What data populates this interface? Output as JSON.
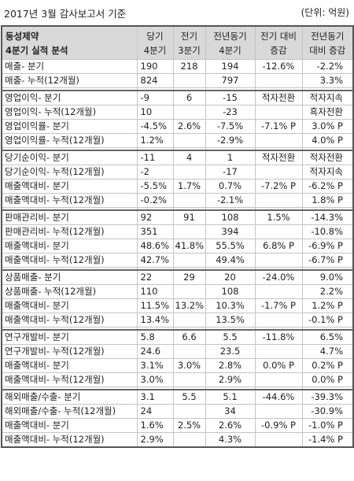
{
  "header": {
    "title": "2017년 3월 감사보고서 기준",
    "unit": "(단위: 억원)"
  },
  "columns": {
    "company": "동성제약",
    "subtitle": "4분기 실적 분석",
    "c1_line1": "당기",
    "c1_line2": "4분기",
    "c2_line1": "전기",
    "c2_line2": "3분기",
    "c3_line1": "전년동기",
    "c3_line2": "4분기",
    "c4_line1": "전기 대비",
    "c4_line2": "증감",
    "c5_line1": "전년동기",
    "c5_line2": "대비 증감"
  },
  "rows": [
    [
      "매출- 분기",
      "190",
      "218",
      "194",
      "-12.6%",
      "-2.2%"
    ],
    [
      "매출- 누적(12개월)",
      "824",
      "",
      "797",
      "",
      "3.3%"
    ],
    [
      "영업이익- 분기",
      "-9",
      "6",
      "-15",
      "적자전환",
      "적자지속"
    ],
    [
      "영업이익- 누적(12개월)",
      "10",
      "",
      "-23",
      "",
      "흑자전환"
    ],
    [
      "영업이익률- 분기",
      "-4.5%",
      "2.6%",
      "-7.5%",
      "-7.1% P",
      "3.0% P"
    ],
    [
      "영업이익률- 누적(12개월)",
      "1.2%",
      "",
      "-2.9%",
      "",
      "4.0% P"
    ],
    [
      "당기순이익- 분기",
      "-11",
      "4",
      "1",
      "적자전환",
      "적자전환"
    ],
    [
      "당기순이익- 누적(12개월)",
      "-2",
      "",
      "-17",
      "",
      "적자지속"
    ],
    [
      "매출액대비- 분기",
      "-5.5%",
      "1.7%",
      "0.7%",
      "-7.2% P",
      "-6.2% P"
    ],
    [
      "매출액대비- 누적(12개월)",
      "-0.2%",
      "",
      "-2.1%",
      "",
      "1.8% P"
    ],
    [
      "판매관리비- 분기",
      "92",
      "91",
      "108",
      "1.5%",
      "-14.3%"
    ],
    [
      "판매관리비- 누적(12개월)",
      "351",
      "",
      "394",
      "",
      "-10.8%"
    ],
    [
      "매출액대비- 분기",
      "48.6%",
      "41.8%",
      "55.5%",
      "6.8% P",
      "-6.9% P"
    ],
    [
      "매출액대비- 누적(12개월)",
      "42.7%",
      "",
      "49.4%",
      "",
      "-6.7% P"
    ],
    [
      "상품매출- 분기",
      "22",
      "29",
      "20",
      "-24.0%",
      "9.0%"
    ],
    [
      "상품매출- 누적(12개월)",
      "110",
      "",
      "108",
      "",
      "2.2%"
    ],
    [
      "매출액대비- 분기",
      "11.5%",
      "13.2%",
      "10.3%",
      "-1.7% P",
      "1.2% P"
    ],
    [
      "매출액대비- 누적(12개월)",
      "13.4%",
      "",
      "13.5%",
      "",
      "-0.1% P"
    ],
    [
      "연구개발비- 분기",
      "5.8",
      "6.6",
      "5.5",
      "-11.8%",
      "6.5%"
    ],
    [
      "연구개발비- 누적(12개월)",
      "24.6",
      "",
      "23.5",
      "",
      "4.7%"
    ],
    [
      "매출액대비- 분기",
      "3.1%",
      "3.0%",
      "2.8%",
      "0.0% P",
      "0.2% P"
    ],
    [
      "매출액대비- 누적(12개월)",
      "3.0%",
      "",
      "2.9%",
      "",
      "0.0% P"
    ],
    [
      "해외매출/수출- 분기",
      "3.1",
      "5.5",
      "5.1",
      "-44.6%",
      "-39.3%"
    ],
    [
      "해외매출/수출- 누적(12개월)",
      "24",
      "",
      "34",
      "",
      "-30.9%"
    ],
    [
      "매출액대비- 분기",
      "1.6%",
      "2.5%",
      "2.6%",
      "-0.9% P",
      "-1.0% P"
    ],
    [
      "매출액대비- 누적(12개월)",
      "2.9%",
      "",
      "4.3%",
      "",
      "-1.4% P"
    ]
  ]
}
